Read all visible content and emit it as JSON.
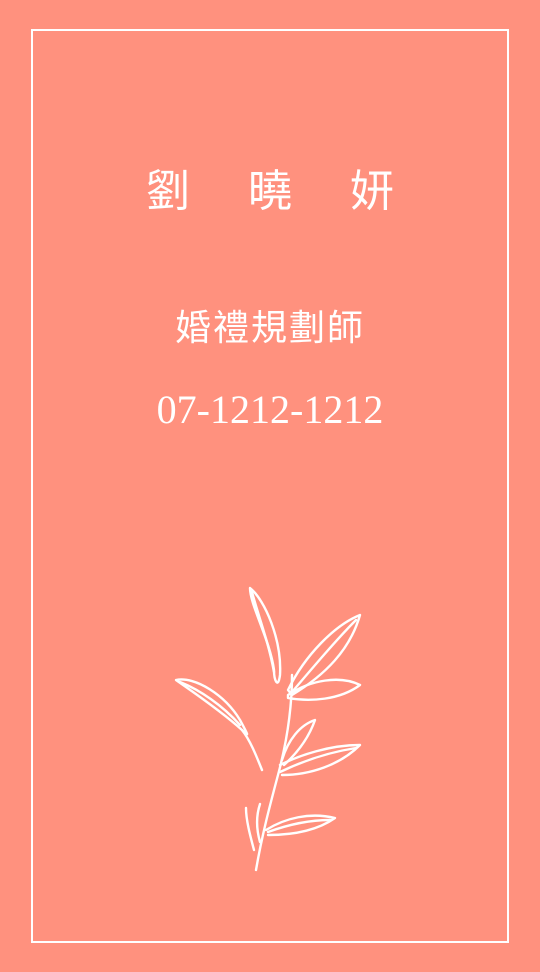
{
  "card": {
    "name": "劉 曉 妍",
    "title": "婚禮規劃師",
    "phone": "07-1212-1212",
    "background_color": "#ff917e",
    "accent_color": "#ffffff"
  },
  "decoration": {
    "icon": "leaf-branch-icon"
  }
}
